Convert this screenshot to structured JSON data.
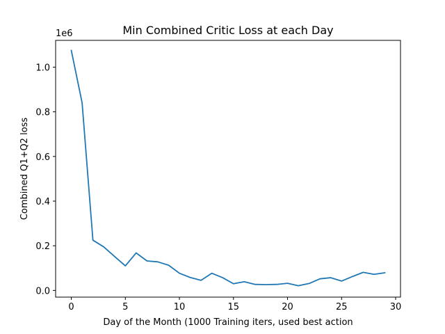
{
  "chart_data": {
    "type": "line",
    "title": "Min Combined Critic Loss at each Day",
    "xlabel": "Day of the Month (1000 Training iters, used best action",
    "ylabel": "Combined Q1+Q2 loss",
    "y_offset_label": "1e6",
    "xlim": [
      -1.45,
      30.45
    ],
    "ylim": [
      -0.03,
      1.12
    ],
    "x_ticks": [
      0,
      5,
      10,
      15,
      20,
      25,
      30
    ],
    "x_tick_labels": [
      "0",
      "5",
      "10",
      "15",
      "20",
      "25",
      "30"
    ],
    "y_ticks": [
      0.0,
      0.2,
      0.4,
      0.6,
      0.8,
      1.0
    ],
    "y_tick_labels": [
      "0.0",
      "0.2",
      "0.4",
      "0.6",
      "0.8",
      "1.0"
    ],
    "grid": false,
    "series": [
      {
        "color": "#1f77b4",
        "x": [
          0,
          1,
          2,
          3,
          4,
          5,
          6,
          7,
          8,
          9,
          10,
          11,
          12,
          13,
          14,
          15,
          16,
          17,
          18,
          19,
          20,
          21,
          22,
          23,
          24,
          25,
          26,
          27,
          28,
          29
        ],
        "y": [
          1.075,
          0.84,
          0.225,
          0.195,
          0.152,
          0.11,
          0.168,
          0.132,
          0.128,
          0.113,
          0.077,
          0.058,
          0.045,
          0.077,
          0.057,
          0.03,
          0.039,
          0.027,
          0.026,
          0.027,
          0.032,
          0.021,
          0.031,
          0.052,
          0.057,
          0.042,
          0.062,
          0.081,
          0.072,
          0.079
        ]
      }
    ]
  }
}
